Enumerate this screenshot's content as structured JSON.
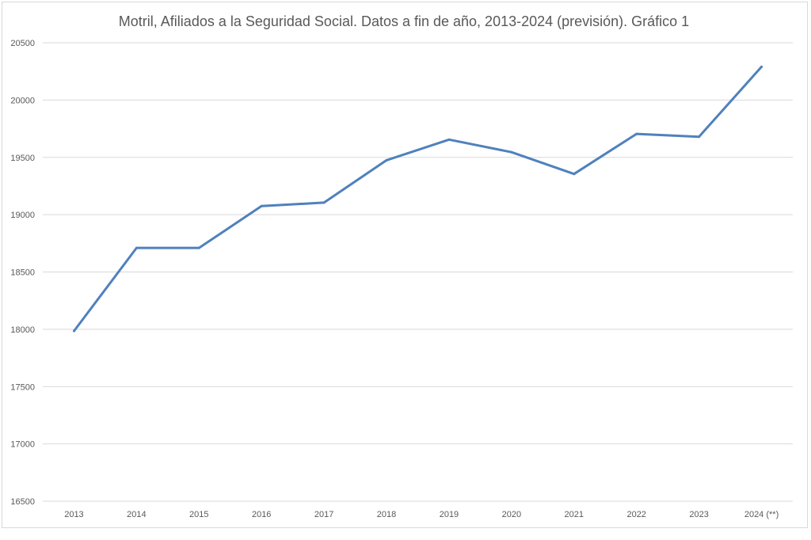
{
  "chart_data": {
    "type": "line",
    "title": "Motril, Afiliados a la Seguridad Social. Datos a fin de año, 2013-2024  (previsión). Gráfico 1",
    "categories": [
      "2013",
      "2014",
      "2015",
      "2016",
      "2017",
      "2018",
      "2019",
      "2020",
      "2021",
      "2022",
      "2023",
      "2024 (**)"
    ],
    "series": [
      {
        "values": [
          17985,
          18710,
          18710,
          19075,
          19105,
          19475,
          19655,
          19545,
          19355,
          19705,
          19680,
          20290
        ],
        "color": "#4f81bd"
      }
    ],
    "ylim": [
      16500,
      20500
    ],
    "yticks": [
      16500,
      17000,
      17500,
      18000,
      18500,
      19000,
      19500,
      20000,
      20500
    ],
    "grid": true,
    "legend": "none"
  }
}
